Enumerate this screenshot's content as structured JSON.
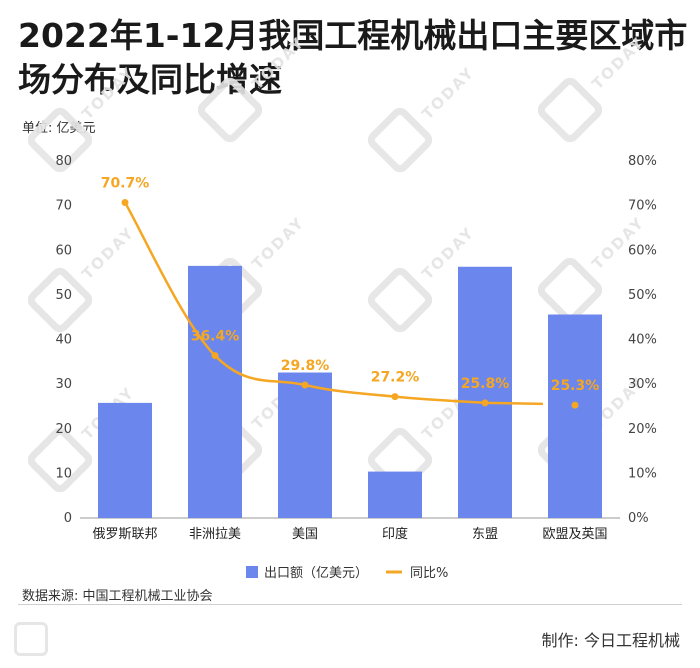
{
  "header": {
    "title": "2022年1-12月我国工程机械出口主要区域市场分布及同比增速",
    "unit_label": "单位: 亿美元"
  },
  "footer": {
    "source": "数据来源: 中国工程机械工业协会",
    "maker": "制作: 今日工程机械"
  },
  "colors": {
    "bar": "#6B86ED",
    "line": "#F5A623"
  },
  "watermark": {
    "text": "TODAY",
    "icon": "today-logo-watermark"
  },
  "chart_data": {
    "type": "bar",
    "categories": [
      "俄罗斯联邦",
      "非洲拉美",
      "美国",
      "印度",
      "东盟",
      "欧盟及英国"
    ],
    "series": [
      {
        "name": "出口额（亿美元）",
        "type": "bar",
        "axis": "left",
        "values": [
          25.8,
          56.5,
          32.6,
          10.4,
          56.3,
          45.6
        ]
      },
      {
        "name": "同比%",
        "type": "line",
        "axis": "right",
        "values": [
          70.7,
          36.4,
          29.8,
          27.2,
          25.8,
          25.3
        ],
        "labels": [
          "70.7%",
          "36.4%",
          "29.8%",
          "27.2%",
          "25.8%",
          "25.3%"
        ]
      }
    ],
    "ylim_left": [
      0,
      80
    ],
    "yticks_left": [
      "0",
      "10",
      "20",
      "30",
      "40",
      "50",
      "60",
      "70",
      "80"
    ],
    "ylim_right": [
      0,
      80
    ],
    "yticks_right": [
      "0%",
      "10%",
      "20%",
      "30%",
      "40%",
      "50%",
      "60%",
      "70%",
      "80%"
    ],
    "grid": false,
    "legend_position": "bottom-center"
  }
}
